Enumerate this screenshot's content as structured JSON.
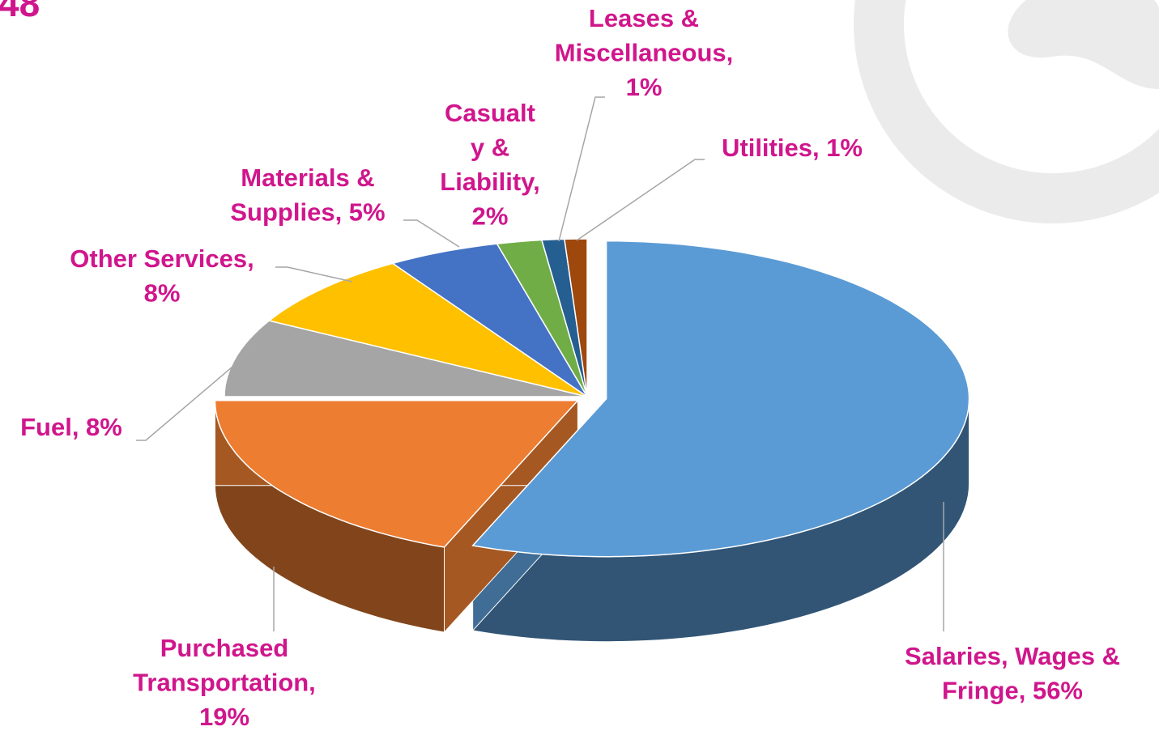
{
  "page_number": "48",
  "chart_data": {
    "type": "pie3d",
    "values": [
      56,
      19,
      8,
      8,
      5,
      2,
      1,
      1
    ],
    "value_labels": [
      [
        "Salaries, Wages &",
        "Fringe, 56%"
      ],
      [
        "Purchased",
        "Transportation,",
        "19%"
      ],
      [
        "Fuel, 8%"
      ],
      [
        "Other Services,",
        "8%"
      ],
      [
        "Materials &",
        "Supplies, 5%"
      ],
      [
        "Casualt",
        "y &",
        "Liability,",
        "2%"
      ],
      [
        "Leases &",
        "Miscellaneous,",
        "1%"
      ],
      [
        "Utilities, 1%"
      ]
    ],
    "colors": [
      "#5b9bd5",
      "#ed7d31",
      "#a5a5a5",
      "#ffc000",
      "#4472c4",
      "#70ad47",
      "#255e91",
      "#9e480e"
    ]
  }
}
